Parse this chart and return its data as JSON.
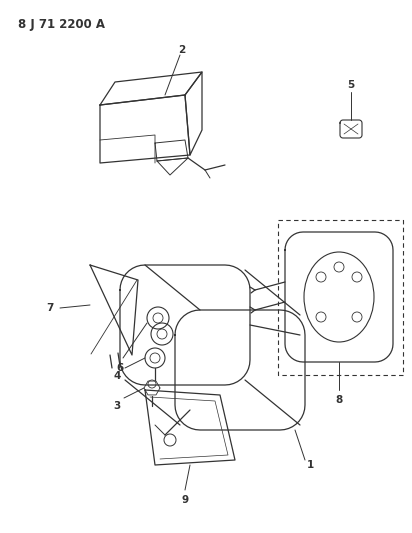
{
  "title": "8 J 71 2200 A",
  "bg_color": "#ffffff",
  "line_color": "#333333",
  "fig_width": 4.12,
  "fig_height": 5.33,
  "dpi": 100
}
